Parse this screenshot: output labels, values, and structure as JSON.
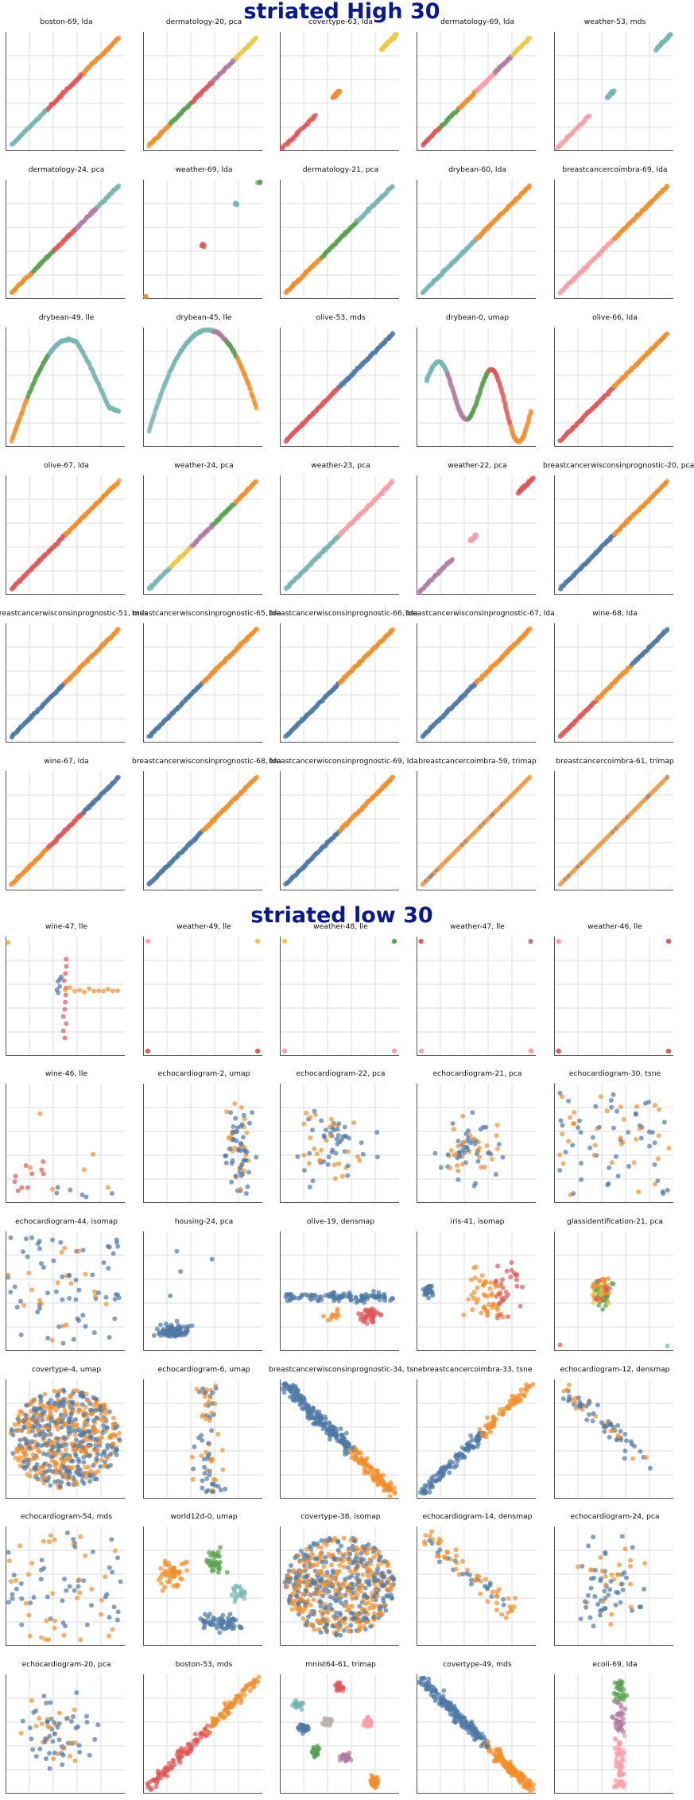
{
  "page": {
    "sections": [
      {
        "title": "striated High 30"
      },
      {
        "title": "striated low 30"
      }
    ]
  },
  "palette": {
    "blue": "#4e79a7",
    "orange": "#f28e2b",
    "red": "#e15759",
    "teal": "#76b7b2",
    "green": "#59a14f",
    "yellow": "#edc948",
    "purple": "#b07aa1",
    "pink": "#ff9da7",
    "brown": "#9c755f",
    "grey": "#bab0ac"
  },
  "chart_data": [
    {
      "section": 0,
      "title": "boston-69, lda",
      "type": "scatter",
      "shape": "diag",
      "colors": [
        "teal",
        "red",
        "orange"
      ]
    },
    {
      "section": 0,
      "title": "dermatology-20, pca",
      "type": "scatter",
      "shape": "diag",
      "colors": [
        "orange",
        "green",
        "red",
        "purple",
        "yellow"
      ]
    },
    {
      "section": 0,
      "title": "covertype-63, lda",
      "type": "scatter",
      "shape": "diag-gaps",
      "colors": [
        "red",
        "orange",
        "yellow"
      ]
    },
    {
      "section": 0,
      "title": "dermatology-69, lda",
      "type": "scatter",
      "shape": "diag",
      "colors": [
        "red",
        "green",
        "orange",
        "pink",
        "purple",
        "yellow"
      ]
    },
    {
      "section": 0,
      "title": "weather-53, mds",
      "type": "scatter",
      "shape": "diag-gaps",
      "colors": [
        "pink",
        "teal"
      ]
    },
    {
      "section": 0,
      "title": "dermatology-24, pca",
      "type": "scatter",
      "shape": "diag",
      "colors": [
        "orange",
        "green",
        "red",
        "purple",
        "teal"
      ]
    },
    {
      "section": 0,
      "title": "weather-69, lda",
      "type": "scatter",
      "shape": "clusters",
      "colors": [
        "orange",
        "red",
        "teal",
        "green"
      ]
    },
    {
      "section": 0,
      "title": "dermatology-21, pca",
      "type": "scatter",
      "shape": "diag",
      "colors": [
        "orange",
        "green",
        "teal"
      ]
    },
    {
      "section": 0,
      "title": "drybean-60, lda",
      "type": "scatter",
      "shape": "diag",
      "colors": [
        "teal",
        "orange"
      ]
    },
    {
      "section": 0,
      "title": "breastcancercoimbra-69, lda",
      "type": "scatter",
      "shape": "diag",
      "colors": [
        "pink",
        "orange"
      ]
    },
    {
      "section": 0,
      "title": "drybean-49, lle",
      "type": "scatter",
      "shape": "arch",
      "colors": [
        "orange",
        "green",
        "teal"
      ]
    },
    {
      "section": 0,
      "title": "drybean-45, lle",
      "type": "scatter",
      "shape": "u",
      "colors": [
        "teal",
        "purple",
        "green",
        "orange"
      ]
    },
    {
      "section": 0,
      "title": "olive-53, mds",
      "type": "scatter",
      "shape": "diag",
      "colors": [
        "red",
        "blue"
      ]
    },
    {
      "section": 0,
      "title": "drybean-0, umap",
      "type": "scatter",
      "shape": "curve",
      "colors": [
        "teal",
        "purple",
        "green",
        "red",
        "orange"
      ]
    },
    {
      "section": 0,
      "title": "olive-66, lda",
      "type": "scatter",
      "shape": "diag",
      "colors": [
        "red",
        "orange"
      ]
    },
    {
      "section": 0,
      "title": "olive-67, lda",
      "type": "scatter",
      "shape": "diag",
      "colors": [
        "red",
        "orange"
      ]
    },
    {
      "section": 0,
      "title": "weather-24, pca",
      "type": "scatter",
      "shape": "diag",
      "colors": [
        "teal",
        "yellow",
        "purple",
        "green",
        "orange"
      ]
    },
    {
      "section": 0,
      "title": "weather-23, pca",
      "type": "scatter",
      "shape": "diag",
      "colors": [
        "teal",
        "pink"
      ]
    },
    {
      "section": 0,
      "title": "weather-22, pca",
      "type": "scatter",
      "shape": "diag-gaps",
      "colors": [
        "purple",
        "pink",
        "red"
      ]
    },
    {
      "section": 0,
      "title": "breastcancerwisconsinprognostic-20, pca",
      "type": "scatter",
      "shape": "diag",
      "colors": [
        "blue",
        "orange"
      ]
    },
    {
      "section": 0,
      "title": "breastcancerwisconsinprognostic-51, mds",
      "type": "scatter",
      "shape": "diag",
      "colors": [
        "blue",
        "orange"
      ]
    },
    {
      "section": 0,
      "title": "breastcancerwisconsinprognostic-65, lda",
      "type": "scatter",
      "shape": "diag",
      "colors": [
        "blue",
        "orange"
      ]
    },
    {
      "section": 0,
      "title": "breastcancerwisconsinprognostic-66, lda",
      "type": "scatter",
      "shape": "diag",
      "colors": [
        "blue",
        "orange"
      ]
    },
    {
      "section": 0,
      "title": "breastcancerwisconsinprognostic-67, lda",
      "type": "scatter",
      "shape": "diag",
      "colors": [
        "blue",
        "orange"
      ]
    },
    {
      "section": 0,
      "title": "wine-68, lda",
      "type": "scatter",
      "shape": "diag",
      "colors": [
        "red",
        "orange",
        "blue"
      ]
    },
    {
      "section": 0,
      "title": "wine-67, lda",
      "type": "scatter",
      "shape": "diag",
      "colors": [
        "orange",
        "red",
        "blue"
      ]
    },
    {
      "section": 0,
      "title": "breastcancerwisconsinprognostic-68, lda",
      "type": "scatter",
      "shape": "diag",
      "colors": [
        "blue",
        "orange"
      ]
    },
    {
      "section": 0,
      "title": "breastcancerwisconsinprognostic-69, lda",
      "type": "scatter",
      "shape": "diag",
      "colors": [
        "blue",
        "orange"
      ]
    },
    {
      "section": 0,
      "title": "breastcancercoimbra-59, trimap",
      "type": "scatter",
      "shape": "diag-dots",
      "colors": [
        "orange",
        "brown"
      ]
    },
    {
      "section": 0,
      "title": "breastcancercoimbra-61, trimap",
      "type": "scatter",
      "shape": "diag-dots",
      "colors": [
        "orange",
        "brown"
      ]
    },
    {
      "section": 1,
      "title": "wine-47, lle",
      "type": "scatter",
      "shape": "tee",
      "colors": [
        "red",
        "orange",
        "blue"
      ]
    },
    {
      "section": 1,
      "title": "weather-49, lle",
      "type": "scatter",
      "shape": "corners",
      "colors": [
        "pink",
        "yellow",
        "red"
      ]
    },
    {
      "section": 1,
      "title": "weather-48, lle",
      "type": "scatter",
      "shape": "corners",
      "colors": [
        "yellow",
        "green",
        "pink"
      ]
    },
    {
      "section": 1,
      "title": "weather-47, lle",
      "type": "scatter",
      "shape": "corners",
      "colors": [
        "red",
        "purple",
        "pink"
      ]
    },
    {
      "section": 1,
      "title": "weather-46, lle",
      "type": "scatter",
      "shape": "corners",
      "colors": [
        "pink",
        "red",
        "red"
      ]
    },
    {
      "section": 1,
      "title": "wine-46, lle",
      "type": "scatter",
      "shape": "sparse",
      "colors": [
        "red",
        "orange",
        "blue"
      ]
    },
    {
      "section": 1,
      "title": "echocardiogram-2, umap",
      "type": "scatter",
      "shape": "cloud-right",
      "colors": [
        "blue",
        "orange"
      ]
    },
    {
      "section": 1,
      "title": "echocardiogram-22, pca",
      "type": "scatter",
      "shape": "cloud",
      "colors": [
        "blue",
        "orange"
      ]
    },
    {
      "section": 1,
      "title": "echocardiogram-21, pca",
      "type": "scatter",
      "shape": "cloud",
      "colors": [
        "blue",
        "orange"
      ]
    },
    {
      "section": 1,
      "title": "echocardiogram-30, tsne",
      "type": "scatter",
      "shape": "cloud-wide",
      "colors": [
        "blue",
        "orange"
      ]
    },
    {
      "section": 1,
      "title": "echocardiogram-44, isomap",
      "type": "scatter",
      "shape": "cloud-wide",
      "colors": [
        "blue",
        "orange"
      ]
    },
    {
      "section": 1,
      "title": "housing-24, pca",
      "type": "scatter",
      "shape": "bottom-left",
      "colors": [
        "blue"
      ]
    },
    {
      "section": 1,
      "title": "olive-19, densmap",
      "type": "scatter",
      "shape": "band",
      "colors": [
        "blue",
        "red",
        "orange"
      ]
    },
    {
      "section": 1,
      "title": "iris-41, isomap",
      "type": "scatter",
      "shape": "three",
      "colors": [
        "blue",
        "orange",
        "red"
      ]
    },
    {
      "section": 1,
      "title": "glassidentification-21, pca",
      "type": "scatter",
      "shape": "center",
      "colors": [
        "orange",
        "red",
        "green",
        "yellow",
        "teal"
      ]
    },
    {
      "section": 1,
      "title": "covertype-4, umap",
      "type": "scatter",
      "shape": "blob",
      "colors": [
        "blue",
        "orange"
      ]
    },
    {
      "section": 1,
      "title": "echocardiogram-6, umap",
      "type": "scatter",
      "shape": "column",
      "colors": [
        "orange",
        "blue"
      ]
    },
    {
      "section": 1,
      "title": "breastcancerwisconsinprognostic-34, tsne",
      "type": "scatter",
      "shape": "thick-diag-down",
      "colors": [
        "blue",
        "orange"
      ]
    },
    {
      "section": 1,
      "title": "breastcancercoimbra-33, tsne",
      "type": "scatter",
      "shape": "thick-diag",
      "colors": [
        "blue",
        "orange"
      ]
    },
    {
      "section": 1,
      "title": "echocardiogram-12, densmap",
      "type": "scatter",
      "shape": "spread-down",
      "colors": [
        "blue",
        "orange"
      ]
    },
    {
      "section": 1,
      "title": "echocardiogram-54, mds",
      "type": "scatter",
      "shape": "cloud-wide",
      "colors": [
        "blue",
        "orange"
      ]
    },
    {
      "section": 1,
      "title": "world12d-0, umap",
      "type": "scatter",
      "shape": "world",
      "colors": [
        "orange",
        "green",
        "blue",
        "teal"
      ]
    },
    {
      "section": 1,
      "title": "covertype-38, isomap",
      "type": "scatter",
      "shape": "blob",
      "colors": [
        "blue",
        "orange"
      ]
    },
    {
      "section": 1,
      "title": "echocardiogram-14, densmap",
      "type": "scatter",
      "shape": "spread-down",
      "colors": [
        "orange",
        "blue"
      ]
    },
    {
      "section": 1,
      "title": "echocardiogram-24, pca",
      "type": "scatter",
      "shape": "cloud",
      "colors": [
        "blue",
        "orange"
      ]
    },
    {
      "section": 1,
      "title": "echocardiogram-20, pca",
      "type": "scatter",
      "shape": "cloud",
      "colors": [
        "blue",
        "orange"
      ]
    },
    {
      "section": 1,
      "title": "boston-53, mds",
      "type": "scatter",
      "shape": "thick-diag",
      "colors": [
        "red",
        "orange",
        "blue"
      ]
    },
    {
      "section": 1,
      "title": "mnist64-61, trimap",
      "type": "scatter",
      "shape": "mnist",
      "colors": [
        "red",
        "blue",
        "teal",
        "green",
        "purple",
        "pink",
        "orange",
        "grey"
      ]
    },
    {
      "section": 1,
      "title": "covertype-49, mds",
      "type": "scatter",
      "shape": "thick-diag-down",
      "colors": [
        "blue",
        "orange"
      ]
    },
    {
      "section": 1,
      "title": "ecoli-69, lda",
      "type": "scatter",
      "shape": "vertical",
      "colors": [
        "purple",
        "pink",
        "green",
        "blue"
      ]
    }
  ]
}
